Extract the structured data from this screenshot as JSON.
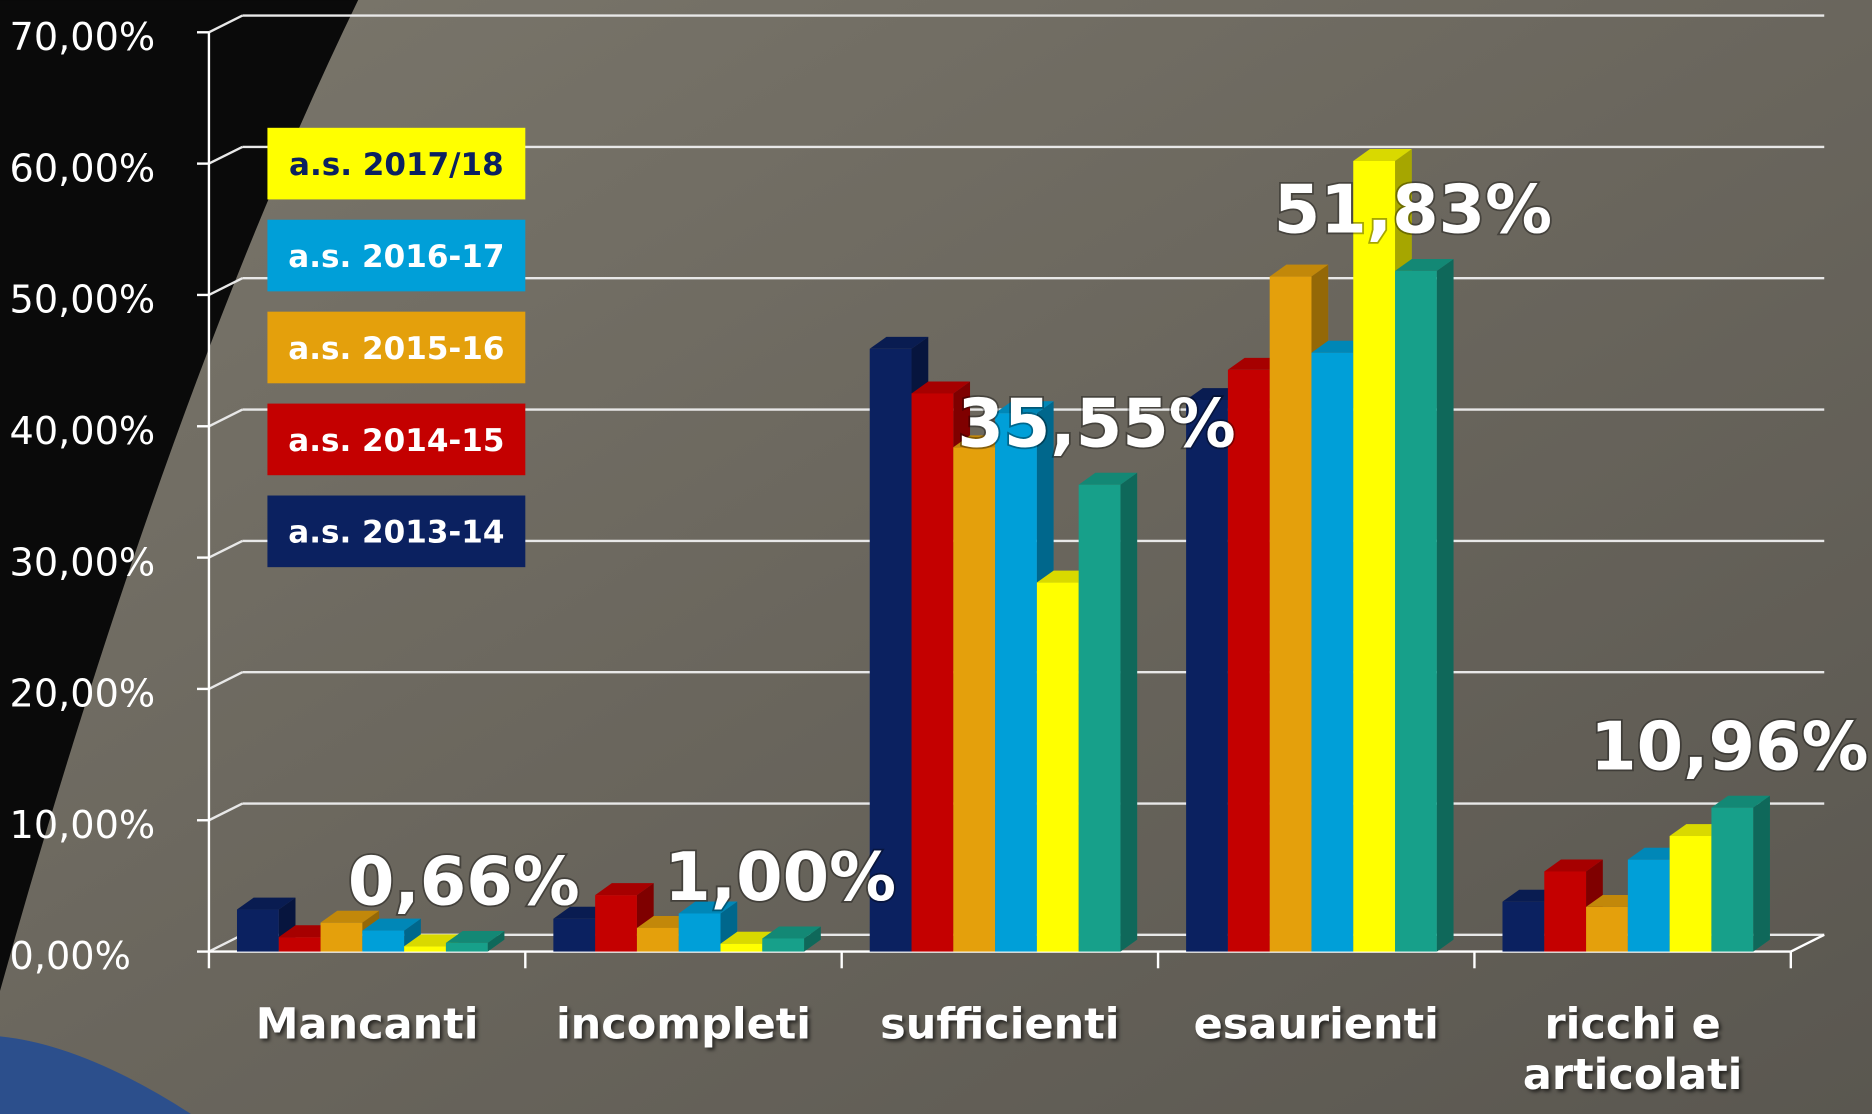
{
  "chart_data": {
    "type": "bar3d",
    "categories": [
      "Mancanti",
      "incompleti",
      "sufficienti",
      "esaurienti",
      "ricchi e articolati"
    ],
    "series": [
      {
        "name": "a.s. 2013-14",
        "color": "#0b2160",
        "values": [
          3.2,
          2.5,
          45.9,
          42.0,
          3.8
        ]
      },
      {
        "name": "a.s. 2014-15",
        "color": "#c40000",
        "values": [
          1.1,
          4.3,
          42.5,
          44.3,
          6.1
        ]
      },
      {
        "name": "a.s. 2015-16",
        "color": "#e4a00c",
        "values": [
          2.2,
          1.8,
          38.4,
          51.4,
          3.4
        ]
      },
      {
        "name": "a.s. 2016-17",
        "color": "#009fd8",
        "values": [
          1.6,
          2.9,
          41.0,
          45.6,
          7.0
        ]
      },
      {
        "name": "a.s. 2017/18",
        "color": "#ffff00",
        "values": [
          0.4,
          0.6,
          28.1,
          60.2,
          8.8
        ]
      },
      {
        "color": "#17a08a",
        "values": [
          0.66,
          1.0,
          35.55,
          51.83,
          10.96
        ],
        "value_labels": [
          "0,66%",
          "1,00%",
          "35,55%",
          "51,83%",
          "10,96%"
        ]
      }
    ],
    "ylim": [
      0,
      70
    ],
    "yticks": [
      {
        "value": 0,
        "label": "0,00%"
      },
      {
        "value": 10,
        "label": "10,00%"
      },
      {
        "value": 20,
        "label": "20,00%"
      },
      {
        "value": 30,
        "label": "30,00%"
      },
      {
        "value": 40,
        "label": "40,00%"
      },
      {
        "value": 50,
        "label": "50,00%"
      },
      {
        "value": 60,
        "label": "60,00%"
      },
      {
        "value": 70,
        "label": "70,00%"
      }
    ],
    "grid": true
  }
}
